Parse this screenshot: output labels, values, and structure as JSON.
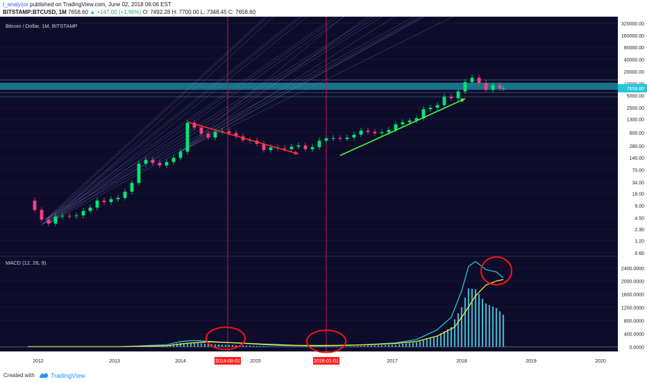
{
  "header": {
    "author": "t_analyzor",
    "published": " published on TradingView.com, June 02, 2018 06:06 EST",
    "symbol": "BITSTAMP:BTCUSD, 1M",
    "price": "7658.60",
    "change": "+147.00 (+1.96%)",
    "ohlc": "O: 7492.28  H: 7700.00  L: 7348.45  C: 7658.60"
  },
  "footer": {
    "created": "Created with",
    "brand": "TradingView"
  },
  "colors": {
    "bg": "#0d0d2b",
    "grid": "#1c1c3a",
    "up": "#00e676",
    "down": "#ff4081",
    "macd": "#26c6da",
    "signal": "#ffeb3b",
    "hist": "#4dd0e1",
    "annotation": "#ff1111",
    "label_red": "#ff1f1f",
    "band": "#26c6da"
  },
  "chart_data": [
    {
      "type": "line",
      "title": "Bitcoin / Dollar, 1M, BITSTAMP",
      "scale": "log",
      "xlabel": "",
      "ylabel": "",
      "x_ticks": [
        "2012",
        "2013",
        "2014",
        "2014-08-01",
        "2015",
        "2016-01-01",
        "2017",
        "2018",
        "2019",
        "2020"
      ],
      "highlighted_x": [
        "2014-08-01",
        "2016-01-01"
      ],
      "y_ticks": [
        "320000.00",
        "160000.00",
        "80000.00",
        "40000.00",
        "20000.00",
        "10000.00",
        "5000.00",
        "2500.00",
        "1300.00",
        "600.00",
        "280.00",
        "140.00",
        "70.00",
        "34.00",
        "18.00",
        "9.00",
        "4.50",
        "2.30",
        "1.20",
        "0.60"
      ],
      "current_price_label": "7658.60",
      "ylim": [
        0.55,
        340000
      ],
      "xlim": [
        2011.3,
        2020.2
      ],
      "vertical_markers": [
        2014.58,
        2016.0
      ],
      "horizontal_band": [
        7000,
        10500
      ],
      "series": [
        {
          "values": [
            [
              2011.7,
              12
            ],
            [
              2011.8,
              7
            ],
            [
              2011.9,
              4
            ],
            [
              2012.0,
              3.2
            ],
            [
              2012.1,
              4.8
            ],
            [
              2012.2,
              5
            ],
            [
              2012.3,
              4.9
            ],
            [
              2012.4,
              5.1
            ],
            [
              2012.5,
              6.6
            ],
            [
              2012.6,
              8
            ],
            [
              2012.7,
              12
            ],
            [
              2012.8,
              11
            ],
            [
              2012.9,
              13
            ],
            [
              2013.0,
              14
            ],
            [
              2013.1,
              20
            ],
            [
              2013.2,
              33
            ],
            [
              2013.3,
              100
            ],
            [
              2013.4,
              125
            ],
            [
              2013.5,
              105
            ],
            [
              2013.6,
              90
            ],
            [
              2013.7,
              110
            ],
            [
              2013.8,
              140
            ],
            [
              2013.9,
              200
            ],
            [
              2014.0,
              1050
            ],
            [
              2014.1,
              800
            ],
            [
              2014.2,
              560
            ],
            [
              2014.3,
              450
            ],
            [
              2014.4,
              630
            ],
            [
              2014.5,
              640
            ],
            [
              2014.6,
              580
            ],
            [
              2014.7,
              480
            ],
            [
              2014.8,
              390
            ],
            [
              2014.9,
              375
            ],
            [
              2015.0,
              315
            ],
            [
              2015.1,
              220
            ],
            [
              2015.2,
              255
            ],
            [
              2015.3,
              240
            ],
            [
              2015.4,
              230
            ],
            [
              2015.5,
              265
            ],
            [
              2015.6,
              285
            ],
            [
              2015.7,
              230
            ],
            [
              2015.8,
              260
            ],
            [
              2015.9,
              375
            ],
            [
              2016.0,
              430
            ],
            [
              2016.1,
              435
            ],
            [
              2016.2,
              415
            ],
            [
              2016.3,
              450
            ],
            [
              2016.4,
              530
            ],
            [
              2016.5,
              670
            ],
            [
              2016.6,
              625
            ],
            [
              2016.7,
              575
            ],
            [
              2016.8,
              610
            ],
            [
              2016.9,
              700
            ],
            [
              2017.0,
              960
            ],
            [
              2017.1,
              1080
            ],
            [
              2017.2,
              1190
            ],
            [
              2017.3,
              1370
            ],
            [
              2017.4,
              2300
            ],
            [
              2017.5,
              2500
            ],
            [
              2017.6,
              2900
            ],
            [
              2017.7,
              4700
            ],
            [
              2017.8,
              4300
            ],
            [
              2017.9,
              6400
            ],
            [
              2018.0,
              10900
            ],
            [
              2018.1,
              14000
            ],
            [
              2018.2,
              10300
            ],
            [
              2018.3,
              6900
            ],
            [
              2018.4,
              9200
            ],
            [
              2018.5,
              7500
            ],
            [
              2018.55,
              7658
            ]
          ]
        }
      ]
    },
    {
      "type": "area",
      "title": "MACD (12, 26, 9)",
      "xlabel": "",
      "ylabel": "",
      "y_ticks": [
        "2400.0000",
        "2000.0000",
        "1600.0000",
        "1200.0000",
        "800.0000",
        "400.0000",
        "0.0000"
      ],
      "ylim": [
        -100,
        2650
      ],
      "series": [
        {
          "name": "MACD",
          "values": [
            [
              2011.7,
              0
            ],
            [
              2013.0,
              0
            ],
            [
              2013.7,
              60
            ],
            [
              2013.9,
              160
            ],
            [
              2014.1,
              190
            ],
            [
              2014.5,
              140
            ],
            [
              2014.9,
              90
            ],
            [
              2015.3,
              40
            ],
            [
              2015.9,
              20
            ],
            [
              2016.3,
              40
            ],
            [
              2016.7,
              80
            ],
            [
              2017.0,
              120
            ],
            [
              2017.3,
              220
            ],
            [
              2017.6,
              520
            ],
            [
              2017.8,
              900
            ],
            [
              2017.95,
              1700
            ],
            [
              2018.05,
              2450
            ],
            [
              2018.15,
              2600
            ],
            [
              2018.3,
              2350
            ],
            [
              2018.45,
              2280
            ],
            [
              2018.55,
              2100
            ]
          ]
        },
        {
          "name": "Signal",
          "values": [
            [
              2011.7,
              0
            ],
            [
              2013.0,
              0
            ],
            [
              2013.7,
              30
            ],
            [
              2014.0,
              110
            ],
            [
              2014.3,
              150
            ],
            [
              2014.7,
              120
            ],
            [
              2015.1,
              80
            ],
            [
              2015.6,
              40
            ],
            [
              2016.1,
              40
            ],
            [
              2016.6,
              60
            ],
            [
              2017.0,
              100
            ],
            [
              2017.3,
              160
            ],
            [
              2017.6,
              330
            ],
            [
              2017.85,
              600
            ],
            [
              2018.0,
              1050
            ],
            [
              2018.15,
              1550
            ],
            [
              2018.3,
              1880
            ],
            [
              2018.45,
              2000
            ],
            [
              2018.55,
              2050
            ]
          ]
        }
      ],
      "annotations": [
        {
          "label": "circle",
          "x": 2014.55,
          "y": 130
        },
        {
          "label": "circle",
          "x": 2016.0,
          "y": 40
        },
        {
          "label": "circle",
          "x": 2018.45,
          "y": 2100
        }
      ]
    }
  ]
}
